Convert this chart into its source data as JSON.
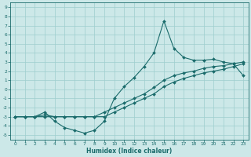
{
  "xlabel": "Humidex (Indice chaleur)",
  "bg_color": "#cce8e8",
  "grid_color": "#9ecece",
  "line_color": "#1a6b6b",
  "x_values": [
    0,
    1,
    2,
    3,
    4,
    5,
    6,
    7,
    8,
    9,
    10,
    11,
    12,
    13,
    14,
    15,
    16,
    17,
    18,
    19,
    20,
    21,
    22,
    23
  ],
  "line1_y": [
    -3,
    -3,
    -3,
    -2.5,
    -3.5,
    -4.2,
    -4.5,
    -4.8,
    -4.5,
    -3.5,
    -1.0,
    0.3,
    1.3,
    2.5,
    4.0,
    7.5,
    4.5,
    3.5,
    3.2,
    3.2,
    3.3,
    3.0,
    2.8,
    1.5
  ],
  "line2_y": [
    -3,
    -3,
    -3,
    -2.8,
    -3,
    -3,
    -3,
    -3,
    -3,
    -2.5,
    -2.0,
    -1.5,
    -1.0,
    -0.5,
    0.2,
    1.0,
    1.5,
    1.8,
    2.0,
    2.3,
    2.5,
    2.6,
    2.8,
    3.0
  ],
  "line3_y": [
    -3,
    -3,
    -3,
    -3,
    -3,
    -3,
    -3,
    -3,
    -3,
    -3,
    -2.5,
    -2.0,
    -1.5,
    -1.0,
    -0.5,
    0.3,
    0.8,
    1.2,
    1.5,
    1.8,
    2.0,
    2.2,
    2.5,
    2.8
  ],
  "xlim": [
    -0.5,
    23.5
  ],
  "ylim": [
    -5.5,
    9.5
  ],
  "yticks": [
    -5,
    -4,
    -3,
    -2,
    -1,
    0,
    1,
    2,
    3,
    4,
    5,
    6,
    7,
    8,
    9
  ],
  "xticks": [
    0,
    1,
    2,
    3,
    4,
    5,
    6,
    7,
    8,
    9,
    10,
    11,
    12,
    13,
    14,
    15,
    16,
    17,
    18,
    19,
    20,
    21,
    22,
    23
  ]
}
